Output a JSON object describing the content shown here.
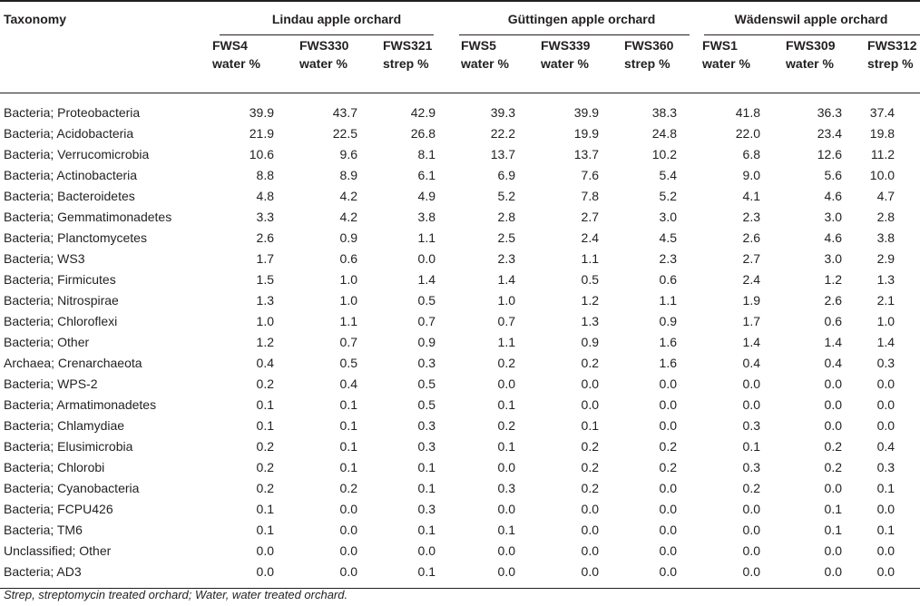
{
  "header": {
    "taxonomy_label": "Taxonomy",
    "groups": [
      "Lindau apple orchard",
      "Güttingen apple orchard",
      "Wädenswil apple orchard"
    ],
    "columns": [
      {
        "id": "FWS4",
        "type": "water %"
      },
      {
        "id": "FWS330",
        "type": "water %"
      },
      {
        "id": "FWS321",
        "type": "strep %"
      },
      {
        "id": "FWS5",
        "type": "water %"
      },
      {
        "id": "FWS339",
        "type": "water %"
      },
      {
        "id": "FWS360",
        "type": "strep %"
      },
      {
        "id": "FWS1",
        "type": "water %"
      },
      {
        "id": "FWS309",
        "type": "water %"
      },
      {
        "id": "FWS312",
        "type": "strep %"
      }
    ]
  },
  "rows": [
    {
      "name": "Bacteria; Proteobacteria",
      "values": [
        "39.9",
        "43.7",
        "42.9",
        "39.3",
        "39.9",
        "38.3",
        "41.8",
        "36.3",
        "37.4"
      ]
    },
    {
      "name": "Bacteria; Acidobacteria",
      "values": [
        "21.9",
        "22.5",
        "26.8",
        "22.2",
        "19.9",
        "24.8",
        "22.0",
        "23.4",
        "19.8"
      ]
    },
    {
      "name": "Bacteria; Verrucomicrobia",
      "values": [
        "10.6",
        "9.6",
        "8.1",
        "13.7",
        "13.7",
        "10.2",
        "6.8",
        "12.6",
        "11.2"
      ]
    },
    {
      "name": "Bacteria; Actinobacteria",
      "values": [
        "8.8",
        "8.9",
        "6.1",
        "6.9",
        "7.6",
        "5.4",
        "9.0",
        "5.6",
        "10.0"
      ]
    },
    {
      "name": "Bacteria; Bacteroidetes",
      "values": [
        "4.8",
        "4.2",
        "4.9",
        "5.2",
        "7.8",
        "5.2",
        "4.1",
        "4.6",
        "4.7"
      ]
    },
    {
      "name": "Bacteria; Gemmatimonadetes",
      "values": [
        "3.3",
        "4.2",
        "3.8",
        "2.8",
        "2.7",
        "3.0",
        "2.3",
        "3.0",
        "2.8"
      ]
    },
    {
      "name": "Bacteria; Planctomycetes",
      "values": [
        "2.6",
        "0.9",
        "1.1",
        "2.5",
        "2.4",
        "4.5",
        "2.6",
        "4.6",
        "3.8"
      ]
    },
    {
      "name": "Bacteria; WS3",
      "values": [
        "1.7",
        "0.6",
        "0.0",
        "2.3",
        "1.1",
        "2.3",
        "2.7",
        "3.0",
        "2.9"
      ]
    },
    {
      "name": "Bacteria; Firmicutes",
      "values": [
        "1.5",
        "1.0",
        "1.4",
        "1.4",
        "0.5",
        "0.6",
        "2.4",
        "1.2",
        "1.3"
      ]
    },
    {
      "name": "Bacteria; Nitrospirae",
      "values": [
        "1.3",
        "1.0",
        "0.5",
        "1.0",
        "1.2",
        "1.1",
        "1.9",
        "2.6",
        "2.1"
      ]
    },
    {
      "name": "Bacteria; Chloroflexi",
      "values": [
        "1.0",
        "1.1",
        "0.7",
        "0.7",
        "1.3",
        "0.9",
        "1.7",
        "0.6",
        "1.0"
      ]
    },
    {
      "name": "Bacteria; Other",
      "values": [
        "1.2",
        "0.7",
        "0.9",
        "1.1",
        "0.9",
        "1.6",
        "1.4",
        "1.4",
        "1.4"
      ]
    },
    {
      "name": "Archaea; Crenarchaeota",
      "values": [
        "0.4",
        "0.5",
        "0.3",
        "0.2",
        "0.2",
        "1.6",
        "0.4",
        "0.4",
        "0.3"
      ]
    },
    {
      "name": "Bacteria; WPS-2",
      "values": [
        "0.2",
        "0.4",
        "0.5",
        "0.0",
        "0.0",
        "0.0",
        "0.0",
        "0.0",
        "0.0"
      ]
    },
    {
      "name": "Bacteria; Armatimonadetes",
      "values": [
        "0.1",
        "0.1",
        "0.5",
        "0.1",
        "0.0",
        "0.0",
        "0.0",
        "0.0",
        "0.0"
      ]
    },
    {
      "name": "Bacteria; Chlamydiae",
      "values": [
        "0.1",
        "0.1",
        "0.3",
        "0.2",
        "0.1",
        "0.0",
        "0.3",
        "0.0",
        "0.0"
      ]
    },
    {
      "name": "Bacteria; Elusimicrobia",
      "values": [
        "0.2",
        "0.1",
        "0.3",
        "0.1",
        "0.2",
        "0.2",
        "0.1",
        "0.2",
        "0.4"
      ]
    },
    {
      "name": "Bacteria; Chlorobi",
      "values": [
        "0.2",
        "0.1",
        "0.1",
        "0.0",
        "0.2",
        "0.2",
        "0.3",
        "0.2",
        "0.3"
      ]
    },
    {
      "name": "Bacteria; Cyanobacteria",
      "values": [
        "0.2",
        "0.2",
        "0.1",
        "0.3",
        "0.2",
        "0.0",
        "0.2",
        "0.0",
        "0.1"
      ]
    },
    {
      "name": "Bacteria; FCPU426",
      "values": [
        "0.1",
        "0.0",
        "0.3",
        "0.0",
        "0.0",
        "0.0",
        "0.0",
        "0.1",
        "0.0"
      ]
    },
    {
      "name": "Bacteria; TM6",
      "values": [
        "0.1",
        "0.0",
        "0.1",
        "0.1",
        "0.0",
        "0.0",
        "0.0",
        "0.1",
        "0.1"
      ]
    },
    {
      "name": "Unclassified; Other",
      "values": [
        "0.0",
        "0.0",
        "0.0",
        "0.0",
        "0.0",
        "0.0",
        "0.0",
        "0.0",
        "0.0"
      ]
    },
    {
      "name": "Bacteria; AD3",
      "values": [
        "0.0",
        "0.0",
        "0.1",
        "0.0",
        "0.0",
        "0.0",
        "0.0",
        "0.0",
        "0.0"
      ]
    }
  ],
  "footnote": "Strep, streptomycin treated orchard; Water, water treated orchard."
}
